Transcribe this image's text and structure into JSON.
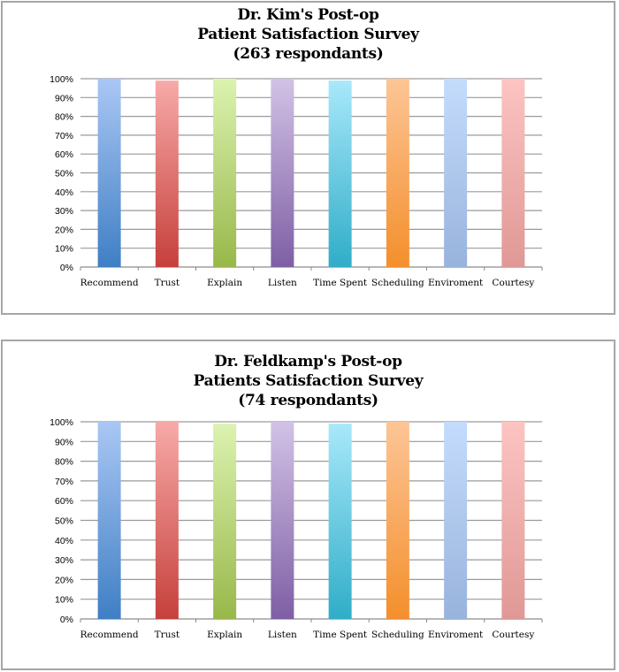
{
  "chart_data": [
    {
      "type": "bar",
      "title_lines": [
        "Dr. Kim's Post-op",
        "Patient Satisfaction Survey",
        "(263 respondants)"
      ],
      "categories": [
        "Recommend",
        "Trust",
        "Explain",
        "Listen",
        "Time Spent",
        "Scheduling",
        "Enviroment",
        "Courtesy"
      ],
      "values": [
        100,
        99,
        100,
        100,
        99,
        100,
        100,
        100
      ],
      "ylim": [
        0,
        100
      ],
      "yticks": [
        "0%",
        "10%",
        "20%",
        "30%",
        "40%",
        "50%",
        "60%",
        "70%",
        "80%",
        "90%",
        "100%"
      ],
      "grid": true,
      "legend": "none"
    },
    {
      "type": "bar",
      "title_lines": [
        "Dr. Feldkamp's Post-op",
        "Patients Satisfaction Survey",
        "(74 respondants)"
      ],
      "categories": [
        "Recommend",
        "Trust",
        "Explain",
        "Listen",
        "Time Spent",
        "Scheduling",
        "Enviroment",
        "Courtesy"
      ],
      "values": [
        100,
        100,
        99,
        100,
        99,
        100,
        100,
        100
      ],
      "ylim": [
        0,
        100
      ],
      "yticks": [
        "0%",
        "10%",
        "20%",
        "30%",
        "40%",
        "50%",
        "60%",
        "70%",
        "80%",
        "90%",
        "100%"
      ],
      "grid": true,
      "legend": "none"
    }
  ],
  "bar_colors": [
    [
      "#3f7fc4",
      "#aac7f4"
    ],
    [
      "#c6403c",
      "#f7aaa8"
    ],
    [
      "#98b84a",
      "#dcf2b0"
    ],
    [
      "#7e5fa4",
      "#d2c2e6"
    ],
    [
      "#30adc8",
      "#a8e8fa"
    ],
    [
      "#f48f2c",
      "#fdc596"
    ],
    [
      "#98b3dc",
      "#c4dcfc"
    ],
    [
      "#e09896",
      "#fcc4c2"
    ]
  ]
}
